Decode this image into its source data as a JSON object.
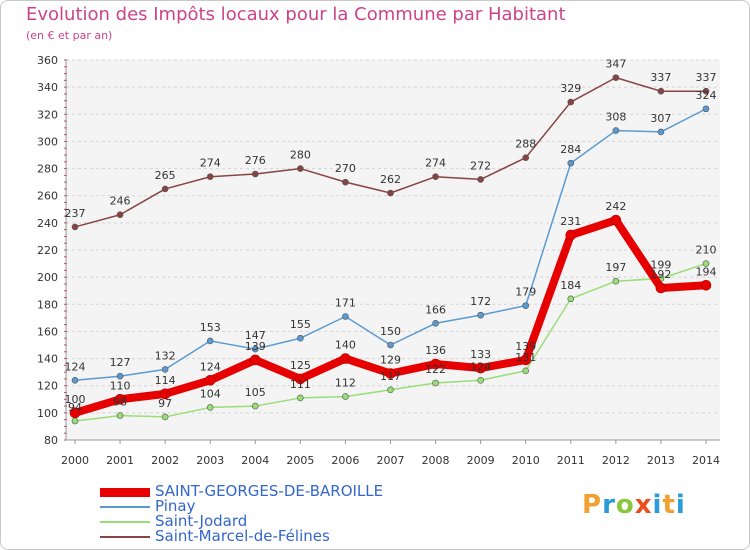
{
  "title": "Evolution des Impôts locaux pour la Commune par Habitant",
  "subtitle": "(en € et par an)",
  "logo_text": "Proxiti",
  "chart_data": {
    "type": "line",
    "x": [
      "2000",
      "2001",
      "2002",
      "2003",
      "2004",
      "2005",
      "2006",
      "2007",
      "2008",
      "2009",
      "2010",
      "2011",
      "2012",
      "2013",
      "2014"
    ],
    "ylim": [
      80,
      360
    ],
    "yticks": [
      80,
      100,
      120,
      140,
      160,
      180,
      200,
      220,
      240,
      260,
      280,
      300,
      320,
      340,
      360
    ],
    "grid": true,
    "legend_position": "bottom-left",
    "series": [
      {
        "name": "SAINT-GEORGES-DE-BAROILLE",
        "color": "#e60000",
        "values": [
          100,
          110,
          114,
          124,
          139,
          125,
          140,
          129,
          136,
          133,
          139,
          231,
          242,
          192,
          194
        ]
      },
      {
        "name": "Pinay",
        "color": "#5a9ad0",
        "values": [
          124,
          127,
          132,
          153,
          147,
          155,
          171,
          150,
          166,
          172,
          179,
          284,
          308,
          307,
          324
        ]
      },
      {
        "name": "Saint-Jodard",
        "color": "#99dd77",
        "values": [
          94,
          98,
          97,
          104,
          105,
          111,
          112,
          117,
          122,
          124,
          131,
          184,
          197,
          199,
          210
        ]
      },
      {
        "name": "Saint-Marcel-de-Félines",
        "color": "#884444",
        "values": [
          237,
          246,
          265,
          274,
          276,
          280,
          270,
          262,
          274,
          272,
          288,
          329,
          347,
          337,
          337
        ]
      }
    ]
  }
}
